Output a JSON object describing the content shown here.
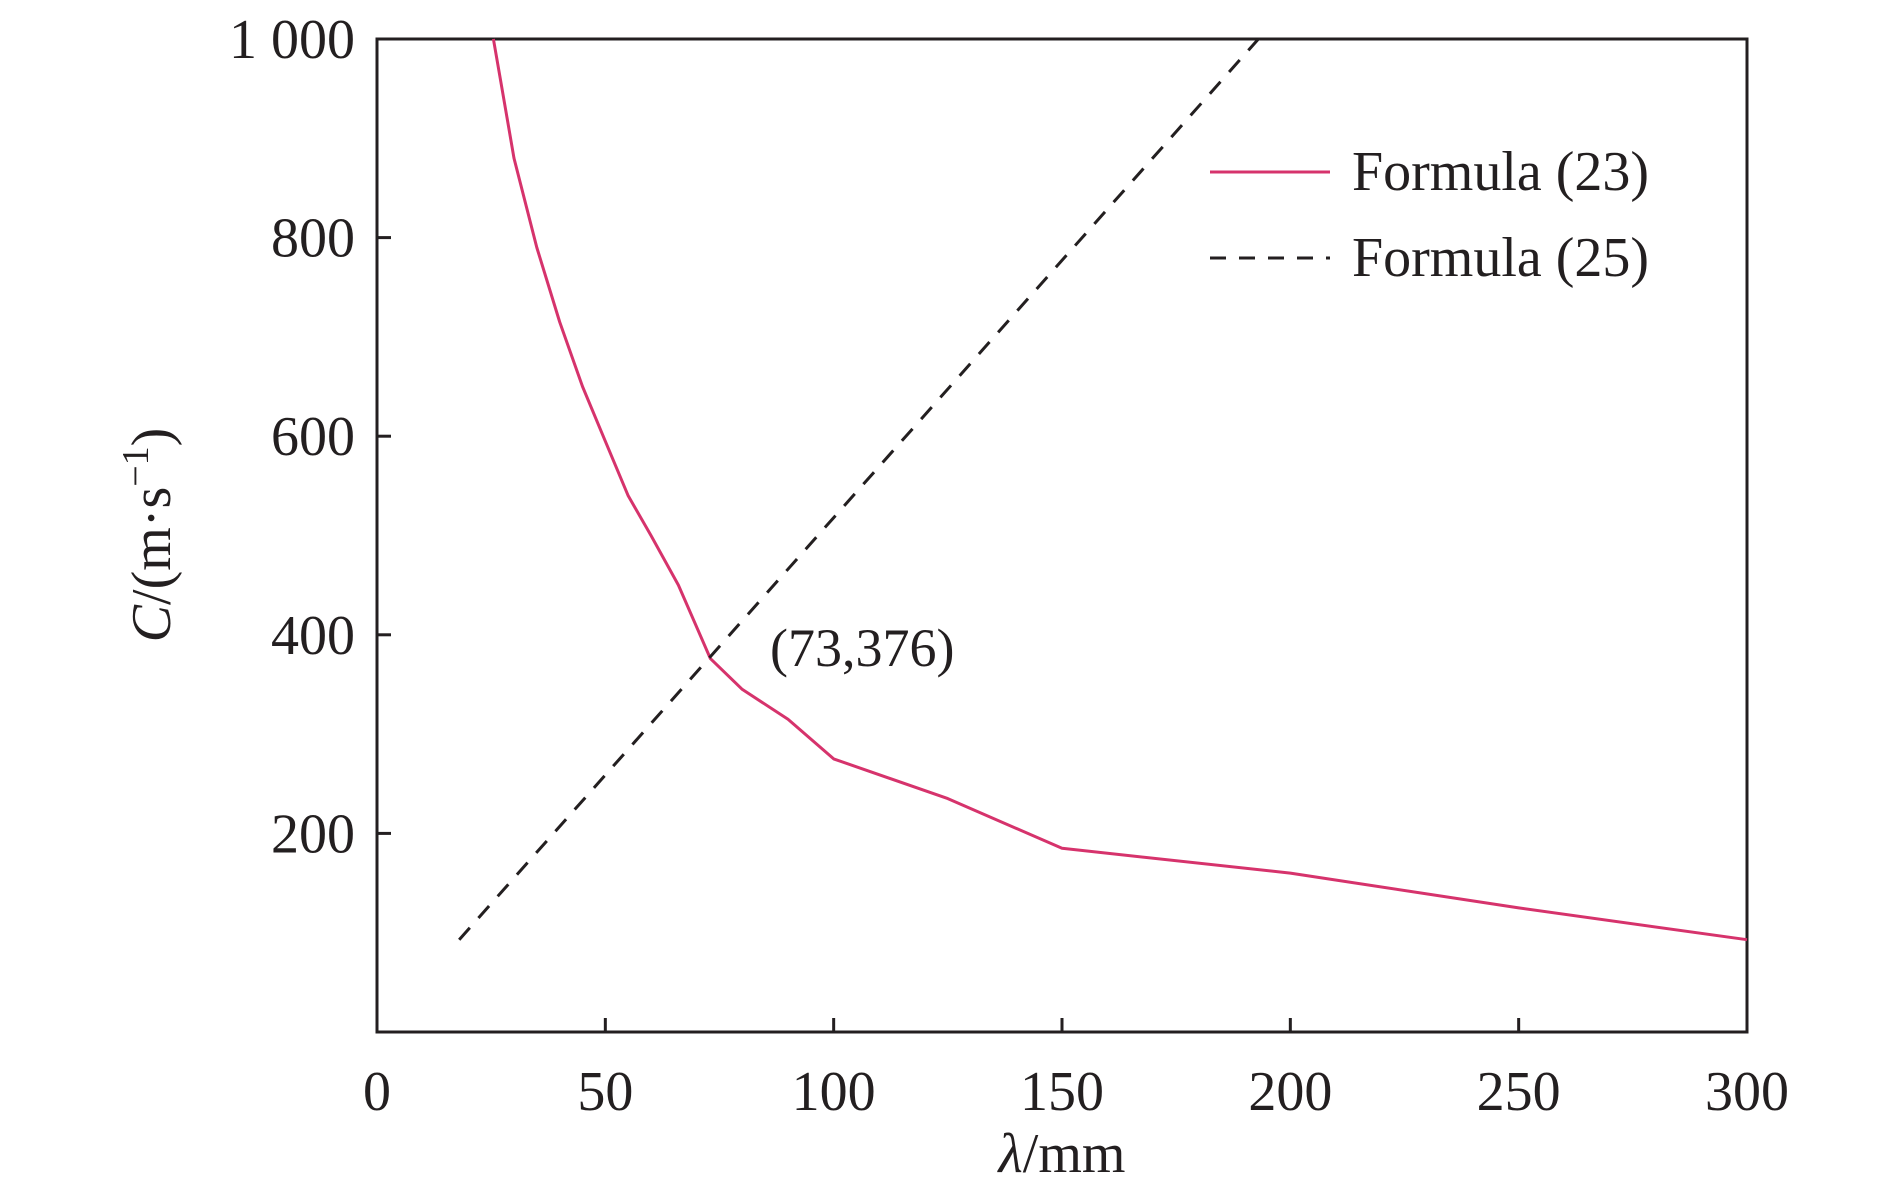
{
  "chart_data": {
    "type": "line",
    "xlabel": {
      "symbol": "λ",
      "unit": "/mm"
    },
    "ylabel": {
      "symbol": "C",
      "unit_prefix": "/(m·s",
      "unit_exp": "−1",
      "unit_suffix": ")"
    },
    "xlim": [
      0,
      300
    ],
    "ylim": [
      0,
      1000
    ],
    "x_ticks": [
      0,
      50,
      100,
      150,
      200,
      250,
      300
    ],
    "x_tick_labels": [
      "0",
      "50",
      "100",
      "150",
      "200",
      "250",
      "300"
    ],
    "y_ticks": [
      200,
      400,
      600,
      800,
      1000
    ],
    "y_tick_labels": [
      "200",
      "400",
      "600",
      "800",
      "1 000"
    ],
    "grid": false,
    "legend_position": "top-right",
    "series": [
      {
        "name": "Formula (23)",
        "color": "#d6336c",
        "style": "solid",
        "x": [
          25.5,
          27,
          30,
          35,
          40,
          45,
          50,
          55,
          60,
          66,
          73,
          80,
          90,
          100,
          125,
          150,
          200,
          250,
          300
        ],
        "y": [
          1000,
          960,
          880,
          790,
          715,
          650,
          595,
          540,
          500,
          450,
          376,
          345,
          315,
          275,
          235,
          185,
          160,
          125,
          93
        ]
      },
      {
        "name": "Formula (25)",
        "color": "#231f20",
        "style": "dashed",
        "x": [
          18,
          193
        ],
        "y": [
          93,
          1000
        ]
      }
    ],
    "annotations": [
      {
        "text": "(73,376)",
        "x": 73,
        "y": 376
      }
    ]
  }
}
